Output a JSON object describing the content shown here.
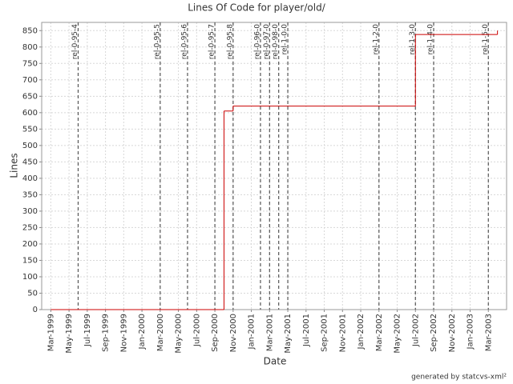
{
  "chart_data": {
    "type": "line",
    "step": "after",
    "title": "Lines Of Code for player/old/",
    "x_label": "Date",
    "y_label": "Lines",
    "footer": "generated by statcvs-xml²",
    "x": [
      "1999-03",
      "2000-10",
      "2000-11",
      "2002-07",
      "2003-04"
    ],
    "series": [
      {
        "name": "Lines",
        "color": "#cc0000",
        "values": [
          0,
          605,
          620,
          838,
          850
        ]
      }
    ],
    "xlim": [
      "1999-02",
      "2003-05"
    ],
    "xticks": [
      {
        "value": "1999-03",
        "label": "Mar-1999"
      },
      {
        "value": "1999-05",
        "label": "May-1999"
      },
      {
        "value": "1999-07",
        "label": "Jul-1999"
      },
      {
        "value": "1999-09",
        "label": "Sep-1999"
      },
      {
        "value": "1999-11",
        "label": "Nov-1999"
      },
      {
        "value": "2000-01",
        "label": "Jan-2000"
      },
      {
        "value": "2000-03",
        "label": "Mar-2000"
      },
      {
        "value": "2000-05",
        "label": "May-2000"
      },
      {
        "value": "2000-07",
        "label": "Jul-2000"
      },
      {
        "value": "2000-09",
        "label": "Sep-2000"
      },
      {
        "value": "2000-11",
        "label": "Nov-2000"
      },
      {
        "value": "2001-01",
        "label": "Jan-2001"
      },
      {
        "value": "2001-03",
        "label": "Mar-2001"
      },
      {
        "value": "2001-05",
        "label": "May-2001"
      },
      {
        "value": "2001-07",
        "label": "Jul-2001"
      },
      {
        "value": "2001-09",
        "label": "Sep-2001"
      },
      {
        "value": "2001-11",
        "label": "Nov-2001"
      },
      {
        "value": "2002-01",
        "label": "Jan-2002"
      },
      {
        "value": "2002-03",
        "label": "Mar-2002"
      },
      {
        "value": "2002-05",
        "label": "May-2002"
      },
      {
        "value": "2002-07",
        "label": "Jul-2002"
      },
      {
        "value": "2002-09",
        "label": "Sep-2002"
      },
      {
        "value": "2002-11",
        "label": "Nov-2002"
      },
      {
        "value": "2003-01",
        "label": "Jan-2003"
      },
      {
        "value": "2003-03",
        "label": "Mar-2003"
      }
    ],
    "ylim": [
      0,
      875
    ],
    "yticks": [
      0,
      50,
      100,
      150,
      200,
      250,
      300,
      350,
      400,
      450,
      500,
      550,
      600,
      650,
      700,
      750,
      800,
      850
    ],
    "grid": true,
    "events": [
      {
        "label": "rel-0-95-4",
        "x": "1999-06"
      },
      {
        "label": "rel-0-95-5",
        "x": "2000-03"
      },
      {
        "label": "rel-0-95-6",
        "x": "2000-06"
      },
      {
        "label": "rel-0-95-7",
        "x": "2000-09"
      },
      {
        "label": "rel-0-95-8",
        "x": "2000-11"
      },
      {
        "label": "rel-0-96-0",
        "x": "2001-02"
      },
      {
        "label": "rel-0-97-0",
        "x": "2001-03"
      },
      {
        "label": "rel-0-98-0",
        "x": "2001-04"
      },
      {
        "label": "rel-1-0-0",
        "x": "2001-05"
      },
      {
        "label": "rel-1-2-0",
        "x": "2002-03"
      },
      {
        "label": "rel-1-3-0",
        "x": "2002-07"
      },
      {
        "label": "rel-1-4-0",
        "x": "2002-09"
      },
      {
        "label": "rel-1-5-0",
        "x": "2003-03"
      }
    ]
  }
}
